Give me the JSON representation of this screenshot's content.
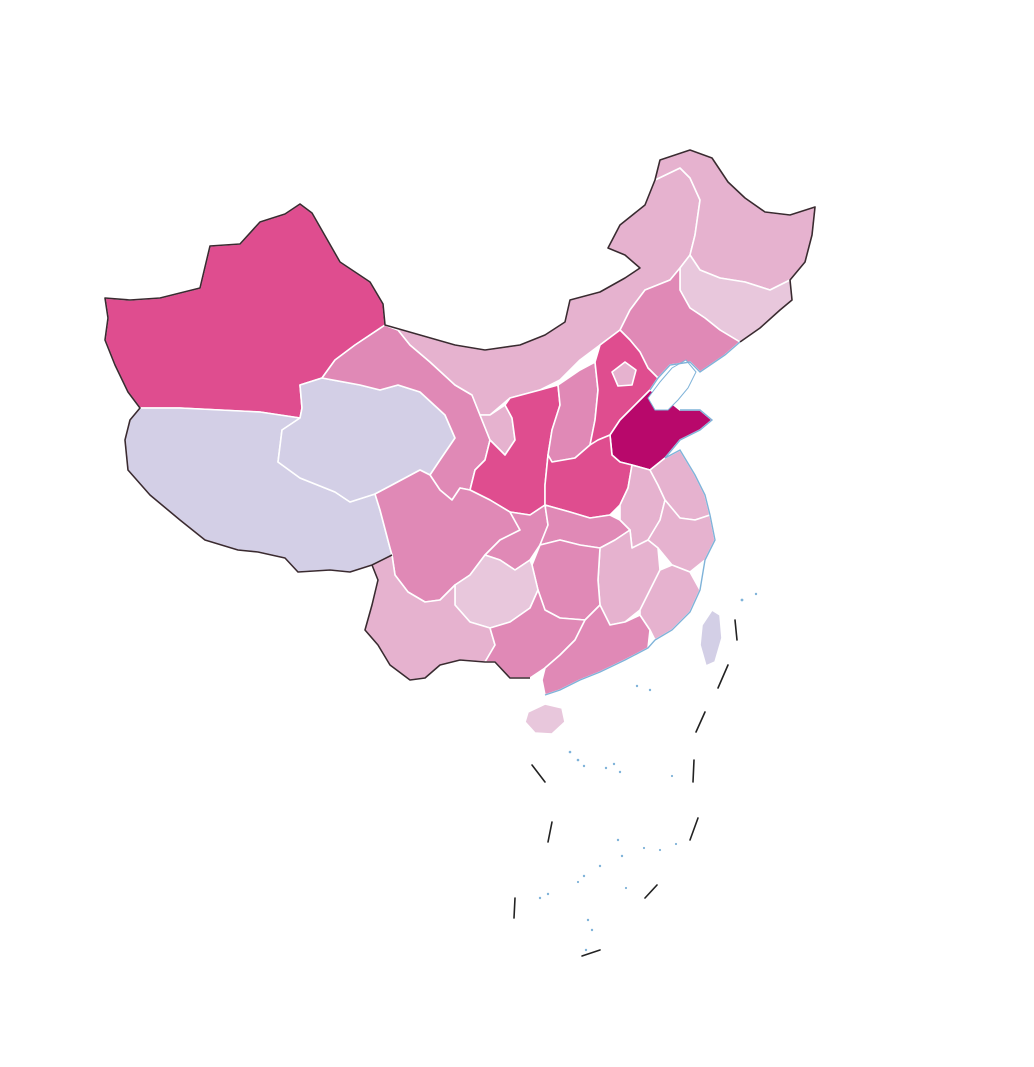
{
  "map": {
    "colors": {
      "level_0": "#d3cfe6",
      "level_1": "#e8c7dc",
      "level_2": "#e6b2cf",
      "level_3": "#e089b6",
      "level_4": "#df4d8f",
      "level_5": "#b8086b",
      "border": "#ffffff",
      "outline": "#3a2a30",
      "coast": "#7fb3d9",
      "sea": "#ffffff"
    },
    "regions": [
      {
        "id": "xinjiang",
        "level": 4
      },
      {
        "id": "tibet",
        "level": 0
      },
      {
        "id": "qinghai",
        "level": 0
      },
      {
        "id": "gansu",
        "level": 3
      },
      {
        "id": "inner-mongolia",
        "level": 2
      },
      {
        "id": "heilongjiang",
        "level": 2
      },
      {
        "id": "jilin",
        "level": 1
      },
      {
        "id": "liaoning",
        "level": 3
      },
      {
        "id": "ningxia",
        "level": 2
      },
      {
        "id": "shaanxi",
        "level": 4
      },
      {
        "id": "shanxi",
        "level": 3
      },
      {
        "id": "hebei",
        "level": 4
      },
      {
        "id": "beijing",
        "level": 2
      },
      {
        "id": "shandong",
        "level": 5
      },
      {
        "id": "henan",
        "level": 4
      },
      {
        "id": "sichuan",
        "level": 3
      },
      {
        "id": "chongqing",
        "level": 3
      },
      {
        "id": "hubei",
        "level": 3
      },
      {
        "id": "anhui",
        "level": 2
      },
      {
        "id": "jiangsu",
        "level": 2
      },
      {
        "id": "zhejiang",
        "level": 2
      },
      {
        "id": "jiangxi",
        "level": 2
      },
      {
        "id": "hunan",
        "level": 3
      },
      {
        "id": "guizhou",
        "level": 1
      },
      {
        "id": "yunnan",
        "level": 2
      },
      {
        "id": "guangxi",
        "level": 3
      },
      {
        "id": "guangdong",
        "level": 3
      },
      {
        "id": "fujian",
        "level": 2
      },
      {
        "id": "hainan",
        "level": 1
      },
      {
        "id": "taiwan",
        "level": 0
      }
    ]
  }
}
